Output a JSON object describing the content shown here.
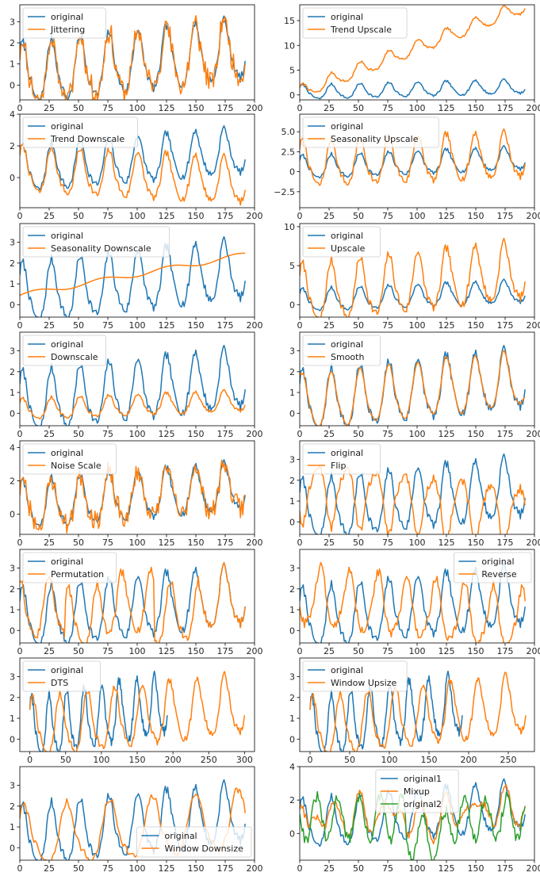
{
  "colors": {
    "original": "#1f77b4",
    "augmented": "#ff7f0e",
    "third": "#2ca02c"
  },
  "chart_data": [
    {
      "type": "line",
      "x_axis": {
        "range": [
          0,
          200
        ],
        "ticks": [
          0,
          25,
          50,
          75,
          100,
          125,
          150,
          175,
          200
        ]
      },
      "y_axis": {
        "range": [
          -0.7,
          3.8
        ],
        "ticks": [
          0,
          1,
          2,
          3
        ]
      },
      "legend": {
        "position": "upper-left",
        "entries": [
          "original",
          "Jittering"
        ]
      }
    },
    {
      "type": "line",
      "x_axis": {
        "range": [
          0,
          200
        ],
        "ticks": [
          0,
          25,
          50,
          75,
          100,
          125,
          150,
          175,
          200
        ]
      },
      "y_axis": {
        "range": [
          -1,
          18.2
        ],
        "ticks": [
          0,
          5,
          10,
          15
        ]
      },
      "legend": {
        "position": "upper-left",
        "entries": [
          "original",
          "Trend Upscale"
        ]
      }
    },
    {
      "type": "line",
      "x_axis": {
        "range": [
          0,
          200
        ],
        "ticks": [
          0,
          25,
          50,
          75,
          100,
          125,
          150,
          175,
          200
        ]
      },
      "y_axis": {
        "range": [
          -1.9,
          4.0
        ],
        "ticks": [
          0,
          2,
          4
        ]
      },
      "legend": {
        "position": "upper-left",
        "entries": [
          "original",
          "Trend Downscale"
        ]
      }
    },
    {
      "type": "line",
      "x_axis": {
        "range": [
          0,
          200
        ],
        "ticks": [
          0,
          25,
          50,
          75,
          100,
          125,
          150,
          175,
          200
        ]
      },
      "y_axis": {
        "range": [
          -4.5,
          7.2
        ],
        "ticks": [
          -2.5,
          0.0,
          2.5,
          5.0
        ]
      },
      "legend": {
        "position": "upper-left",
        "entries": [
          "original",
          "Seasonality Upscale"
        ]
      }
    },
    {
      "type": "line",
      "x_axis": {
        "range": [
          0,
          200
        ],
        "ticks": [
          0,
          25,
          50,
          75,
          100,
          125,
          150,
          175,
          200
        ]
      },
      "y_axis": {
        "range": [
          -0.6,
          3.9
        ],
        "ticks": [
          0,
          1,
          2,
          3
        ]
      },
      "legend": {
        "position": "upper-left",
        "entries": [
          "original",
          "Seasonality Downscale"
        ]
      }
    },
    {
      "type": "line",
      "x_axis": {
        "range": [
          0,
          200
        ],
        "ticks": [
          0,
          25,
          50,
          75,
          100,
          125,
          150,
          175,
          200
        ]
      },
      "y_axis": {
        "range": [
          -1.6,
          10.4
        ],
        "ticks": [
          0,
          5,
          10
        ]
      },
      "legend": {
        "position": "upper-left",
        "entries": [
          "original",
          "Upscale"
        ]
      }
    },
    {
      "type": "line",
      "x_axis": {
        "range": [
          0,
          200
        ],
        "ticks": [
          0,
          25,
          50,
          75,
          100,
          125,
          150,
          175,
          200
        ]
      },
      "y_axis": {
        "range": [
          -0.6,
          3.9
        ],
        "ticks": [
          0,
          1,
          2,
          3
        ]
      },
      "legend": {
        "position": "upper-left",
        "entries": [
          "original",
          "Downscale"
        ]
      }
    },
    {
      "type": "line",
      "x_axis": {
        "range": [
          0,
          200
        ],
        "ticks": [
          0,
          25,
          50,
          75,
          100,
          125,
          150,
          175,
          200
        ]
      },
      "y_axis": {
        "range": [
          -0.6,
          3.9
        ],
        "ticks": [
          0,
          1,
          2,
          3
        ]
      },
      "legend": {
        "position": "upper-left",
        "entries": [
          "original",
          "Smooth"
        ]
      }
    },
    {
      "type": "line",
      "x_axis": {
        "range": [
          0,
          200
        ],
        "ticks": [
          0,
          25,
          50,
          75,
          100,
          125,
          150,
          175,
          200
        ]
      },
      "y_axis": {
        "range": [
          -1.2,
          4.4
        ],
        "ticks": [
          0,
          2,
          4
        ]
      },
      "legend": {
        "position": "upper-left",
        "entries": [
          "original",
          "Noise Scale"
        ]
      }
    },
    {
      "type": "line",
      "x_axis": {
        "range": [
          0,
          200
        ],
        "ticks": [
          0,
          25,
          50,
          75,
          100,
          125,
          150,
          175,
          200
        ]
      },
      "y_axis": {
        "range": [
          -0.6,
          3.9
        ],
        "ticks": [
          0,
          1,
          2,
          3
        ]
      },
      "legend": {
        "position": "upper-left",
        "entries": [
          "original",
          "Flip"
        ]
      }
    },
    {
      "type": "line",
      "x_axis": {
        "range": [
          0,
          200
        ],
        "ticks": [
          0,
          25,
          50,
          75,
          100,
          125,
          150,
          175,
          200
        ]
      },
      "y_axis": {
        "range": [
          -0.6,
          3.9
        ],
        "ticks": [
          0,
          1,
          2,
          3
        ]
      },
      "legend": {
        "position": "upper-left",
        "entries": [
          "original",
          "Permutation"
        ]
      }
    },
    {
      "type": "line",
      "x_axis": {
        "range": [
          0,
          200
        ],
        "ticks": [
          0,
          25,
          50,
          75,
          100,
          125,
          150,
          175,
          200
        ]
      },
      "y_axis": {
        "range": [
          -0.6,
          3.9
        ],
        "ticks": [
          0,
          1,
          2,
          3
        ]
      },
      "legend": {
        "position": "upper-right",
        "entries": [
          "original",
          "Reverse"
        ]
      }
    },
    {
      "type": "line",
      "x_axis": {
        "range": [
          -14,
          314
        ],
        "ticks": [
          0,
          50,
          100,
          150,
          200,
          250,
          300
        ]
      },
      "y_axis": {
        "range": [
          -0.6,
          3.9
        ],
        "ticks": [
          0,
          1,
          2,
          3
        ]
      },
      "legend": {
        "position": "upper-left",
        "entries": [
          "original",
          "DTS"
        ]
      }
    },
    {
      "type": "line",
      "x_axis": {
        "range": [
          -13,
          283
        ],
        "ticks": [
          0,
          50,
          100,
          150,
          200,
          250
        ]
      },
      "y_axis": {
        "range": [
          -0.6,
          3.9
        ],
        "ticks": [
          0,
          1,
          2,
          3
        ]
      },
      "legend": {
        "position": "upper-left",
        "entries": [
          "original",
          "Window Upsize"
        ]
      }
    },
    {
      "type": "line",
      "x_axis": {
        "range": [
          0,
          200
        ],
        "ticks": [
          0,
          25,
          50,
          75,
          100,
          125,
          150,
          175,
          200
        ]
      },
      "y_axis": {
        "range": [
          -0.6,
          3.9
        ],
        "ticks": [
          0,
          1,
          2,
          3
        ]
      },
      "legend": {
        "position": "lower-right",
        "entries": [
          "original",
          "Window Downsize"
        ]
      }
    },
    {
      "type": "line",
      "x_axis": {
        "range": [
          0,
          200
        ],
        "ticks": [
          0,
          25,
          50,
          75,
          100,
          125,
          150,
          175,
          200
        ]
      },
      "y_axis": {
        "range": [
          -1.6,
          4.0
        ],
        "ticks": [
          0,
          2,
          4
        ]
      },
      "legend": {
        "position": "upper-center",
        "entries": [
          "original1",
          "Mixup",
          "original2"
        ]
      }
    }
  ]
}
